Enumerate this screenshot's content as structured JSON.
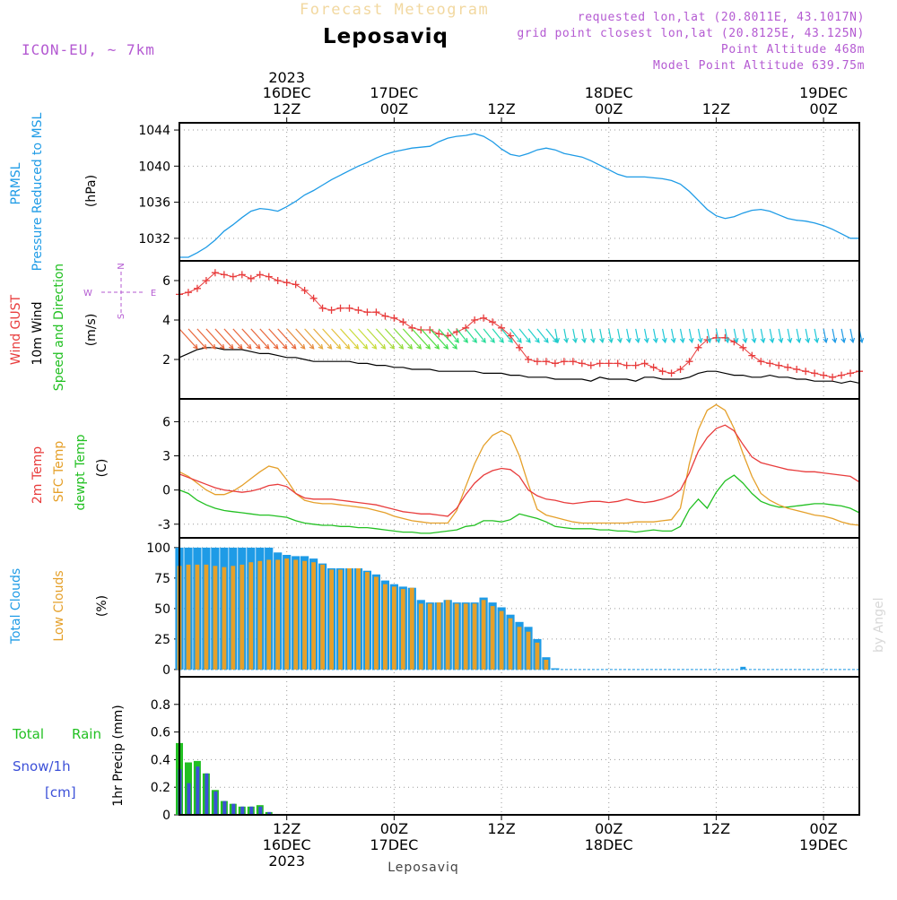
{
  "header": {
    "top_title": "Forecast Meteogram",
    "location": "Leposaviq",
    "model": "ICON-EU, ~ 7km",
    "requested": "requested lon,lat (20.8011E, 43.1017N)",
    "grid_point": "grid point closest lon,lat (20.8125E, 43.125N)",
    "point_alt": "Point Altitude 468m",
    "model_alt": "Model Point Altitude 639.75m",
    "footer_location": "Leposaviq",
    "credit": "by Angel"
  },
  "time_axis": {
    "top_labels": [
      {
        "line1": "2023",
        "line2": "16DEC",
        "line3": "12Z",
        "x": 12
      },
      {
        "line1": "",
        "line2": "17DEC",
        "line3": "00Z",
        "x": 24
      },
      {
        "line1": "",
        "line2": "",
        "line3": "12Z",
        "x": 36
      },
      {
        "line1": "",
        "line2": "18DEC",
        "line3": "00Z",
        "x": 48
      },
      {
        "line1": "",
        "line2": "",
        "line3": "12Z",
        "x": 60
      },
      {
        "line1": "",
        "line2": "19DEC",
        "line3": "00Z",
        "x": 72
      }
    ],
    "bottom_labels": [
      {
        "line1": "12Z",
        "line2": "16DEC",
        "line3": "2023",
        "x": 12
      },
      {
        "line1": "00Z",
        "line2": "17DEC",
        "line3": "",
        "x": 24
      },
      {
        "line1": "12Z",
        "line2": "",
        "line3": "",
        "x": 36
      },
      {
        "line1": "00Z",
        "line2": "18DEC",
        "line3": "",
        "x": 48
      },
      {
        "line1": "12Z",
        "line2": "",
        "line3": "",
        "x": 60
      },
      {
        "line1": "00Z",
        "line2": "19DEC",
        "line3": "",
        "x": 72
      }
    ]
  },
  "panel_labels": {
    "p1": {
      "a": "PRMSL",
      "b": "Pressure Reduced to MSL",
      "unit": "(hPa)"
    },
    "p2": {
      "a": "Wind GUST",
      "b": "10m Wind",
      "c": "Speed and Direction",
      "unit": "(m/s)",
      "compass_n": "N",
      "compass_s": "S",
      "compass_w": "W",
      "compass_e": "E"
    },
    "p3": {
      "a": "2m Temp",
      "b": "SFC Temp",
      "c": "dewpt Temp",
      "unit": "(C)"
    },
    "p4": {
      "a": "Total Clouds",
      "b": "Low Clouds",
      "unit": "(%)"
    },
    "p5": {
      "a": "Total",
      "b": "Rain",
      "c": "Snow/1h",
      "d": "[cm]",
      "unit": "1hr Precip (mm)"
    }
  },
  "colors": {
    "pressure": "#1e9be6",
    "gust": "#e83c3c",
    "wind": "#000000",
    "t2m": "#e83c3c",
    "sfc": "#e5a02a",
    "dewpt": "#22c022",
    "total_clouds": "#1e9be6",
    "low_clouds": "#e5a02a",
    "rain": "#22c022",
    "snow": "#3c50d8",
    "label_purple": "#b45ad2"
  },
  "chart_data": [
    {
      "type": "line",
      "name": "pressure",
      "xlim": [
        0,
        76
      ],
      "ylim": [
        1029.5,
        1044.8
      ],
      "yticks": [
        1032,
        1036,
        1040,
        1044
      ],
      "x": [
        0,
        1,
        2,
        3,
        4,
        5,
        6,
        7,
        8,
        9,
        10,
        11,
        12,
        13,
        14,
        15,
        16,
        17,
        18,
        19,
        20,
        21,
        22,
        23,
        24,
        25,
        26,
        27,
        28,
        29,
        30,
        31,
        32,
        33,
        34,
        35,
        36,
        37,
        38,
        39,
        40,
        41,
        42,
        43,
        44,
        45,
        46,
        47,
        48,
        49,
        50,
        51,
        52,
        53,
        54,
        55,
        56,
        57,
        58,
        59,
        60,
        61,
        62,
        63,
        64,
        65,
        66,
        67,
        68,
        69,
        70,
        71,
        72,
        73,
        74,
        75,
        76
      ],
      "values": [
        1029.9,
        1029.9,
        1030.4,
        1031.0,
        1031.8,
        1032.8,
        1033.5,
        1034.3,
        1035.0,
        1035.3,
        1035.2,
        1035.0,
        1035.5,
        1036.1,
        1036.8,
        1037.3,
        1037.9,
        1038.5,
        1039.0,
        1039.5,
        1040.0,
        1040.4,
        1040.9,
        1041.3,
        1041.6,
        1041.8,
        1042.0,
        1042.1,
        1042.2,
        1042.7,
        1043.1,
        1043.3,
        1043.4,
        1043.6,
        1043.3,
        1042.7,
        1041.9,
        1041.3,
        1041.1,
        1041.4,
        1041.8,
        1042.0,
        1041.8,
        1041.4,
        1041.2,
        1041.0,
        1040.6,
        1040.1,
        1039.6,
        1039.1,
        1038.8,
        1038.8,
        1038.8,
        1038.7,
        1038.6,
        1038.4,
        1038.0,
        1037.2,
        1036.2,
        1035.2,
        1034.5,
        1034.2,
        1034.4,
        1034.8,
        1035.1,
        1035.2,
        1035.0,
        1034.6,
        1034.2,
        1034.0,
        1033.9,
        1033.7,
        1033.4,
        1033.0,
        1032.5,
        1032.0,
        1032.0
      ]
    },
    {
      "type": "line",
      "name": "wind",
      "xlim": [
        0,
        76
      ],
      "ylim": [
        0,
        7
      ],
      "yticks": [
        2,
        4,
        6
      ],
      "gust_x": [
        0,
        1,
        2,
        3,
        4,
        5,
        6,
        7,
        8,
        9,
        10,
        11,
        12,
        13,
        14,
        15,
        16,
        17,
        18,
        19,
        20,
        21,
        22,
        23,
        24,
        25,
        26,
        27,
        28,
        29,
        30,
        31,
        32,
        33,
        34,
        35,
        36,
        37,
        38,
        39,
        40,
        41,
        42,
        43,
        44,
        45,
        46,
        47,
        48,
        49,
        50,
        51,
        52,
        53,
        54,
        55,
        56,
        57,
        58,
        59,
        60,
        61,
        62,
        63,
        64,
        65,
        66,
        67,
        68,
        69,
        70,
        71,
        72,
        73,
        74,
        75,
        76
      ],
      "gust": [
        5.3,
        5.4,
        5.6,
        6.0,
        6.4,
        6.3,
        6.2,
        6.3,
        6.1,
        6.3,
        6.2,
        6.0,
        5.9,
        5.8,
        5.5,
        5.1,
        4.6,
        4.5,
        4.6,
        4.6,
        4.5,
        4.4,
        4.4,
        4.2,
        4.1,
        3.9,
        3.6,
        3.5,
        3.5,
        3.3,
        3.2,
        3.4,
        3.6,
        4.0,
        4.1,
        3.9,
        3.6,
        3.2,
        2.6,
        2.0,
        1.9,
        1.9,
        1.8,
        1.9,
        1.9,
        1.8,
        1.7,
        1.8,
        1.8,
        1.8,
        1.7,
        1.7,
        1.8,
        1.6,
        1.4,
        1.3,
        1.5,
        1.9,
        2.6,
        3.0,
        3.1,
        3.1,
        2.9,
        2.6,
        2.2,
        1.9,
        1.8,
        1.7,
        1.6,
        1.5,
        1.4,
        1.3,
        1.2,
        1.1,
        1.2,
        1.3,
        1.4
      ],
      "speed_x": [
        0,
        1,
        2,
        3,
        4,
        5,
        6,
        7,
        8,
        9,
        10,
        11,
        12,
        13,
        14,
        15,
        16,
        17,
        18,
        19,
        20,
        21,
        22,
        23,
        24,
        25,
        26,
        27,
        28,
        29,
        30,
        31,
        32,
        33,
        34,
        35,
        36,
        37,
        38,
        39,
        40,
        41,
        42,
        43,
        44,
        45,
        46,
        47,
        48,
        49,
        50,
        51,
        52,
        53,
        54,
        55,
        56,
        57,
        58,
        59,
        60,
        61,
        62,
        63,
        64,
        65,
        66,
        67,
        68,
        69,
        70,
        71,
        72,
        73,
        74,
        75,
        76
      ],
      "speed": [
        2.1,
        2.3,
        2.5,
        2.6,
        2.6,
        2.5,
        2.5,
        2.5,
        2.4,
        2.3,
        2.3,
        2.2,
        2.1,
        2.1,
        2.0,
        1.9,
        1.9,
        1.9,
        1.9,
        1.9,
        1.8,
        1.8,
        1.7,
        1.7,
        1.6,
        1.6,
        1.5,
        1.5,
        1.5,
        1.4,
        1.4,
        1.4,
        1.4,
        1.4,
        1.3,
        1.3,
        1.3,
        1.2,
        1.2,
        1.1,
        1.1,
        1.1,
        1.0,
        1.0,
        1.0,
        1.0,
        0.9,
        1.1,
        1.0,
        1.0,
        1.0,
        0.9,
        1.1,
        1.1,
        1.0,
        1.0,
        1.0,
        1.1,
        1.3,
        1.4,
        1.4,
        1.3,
        1.2,
        1.2,
        1.1,
        1.1,
        1.2,
        1.1,
        1.1,
        1.0,
        1.0,
        0.9,
        0.9,
        0.9,
        0.8,
        0.9,
        0.8
      ],
      "arrow_colors": [
        "#e8663a",
        "#e8663a",
        "#e8663a",
        "#e8663a",
        "#e8663a",
        "#e8663a",
        "#e8663a",
        "#e8663a",
        "#e8663a",
        "#e8663a",
        "#e8663a",
        "#e8663a",
        "#e58a3c",
        "#e58a3c",
        "#e5a83c",
        "#e5a83c",
        "#e5c03c",
        "#e5c03c",
        "#d8d23c",
        "#c8dc3c",
        "#c8dc3c",
        "#b8dc3c",
        "#a8dc3c",
        "#96dc3c",
        "#80dc3c",
        "#6ede3c",
        "#5cde3c",
        "#4cde40",
        "#40de50",
        "#38de60",
        "#32de70",
        "#2ede80",
        "#2adc92",
        "#2adc9a",
        "#2adca6",
        "#26dab2",
        "#24d8be",
        "#22d4c4",
        "#22d2c8",
        "#22d0cc",
        "#22cccc",
        "#22cccc",
        "#22cccc",
        "#22cccc",
        "#22cccc",
        "#22cccc",
        "#22cccc",
        "#22cccc",
        "#22cccc",
        "#22cccc",
        "#1ec8d8",
        "#1ec8d8",
        "#1ec8d8",
        "#1ec8d8",
        "#1ec8d8",
        "#1ec8d8",
        "#1ec8d8",
        "#1ec8d8",
        "#1ec8d8",
        "#1ec8d8",
        "#1ec8d8",
        "#1ec8d8",
        "#1ec8d8",
        "#1ec8d8",
        "#1ec8d8",
        "#1ec8d8",
        "#1ec8d8",
        "#1ec8d8",
        "#1ec8d8",
        "#1ec8d8",
        "#1ec8d8",
        "#1ec8d8",
        "#1e9be6",
        "#1e9be6",
        "#1e9be6",
        "#1e9be6",
        "#1e9be6"
      ]
    },
    {
      "type": "line",
      "name": "temperature",
      "xlim": [
        0,
        76
      ],
      "ylim": [
        -4.2,
        8.0
      ],
      "yticks": [
        -3,
        0,
        3,
        6
      ],
      "x": [
        0,
        1,
        2,
        3,
        4,
        5,
        6,
        7,
        8,
        9,
        10,
        11,
        12,
        13,
        14,
        15,
        16,
        17,
        18,
        19,
        20,
        21,
        22,
        23,
        24,
        25,
        26,
        27,
        28,
        29,
        30,
        31,
        32,
        33,
        34,
        35,
        36,
        37,
        38,
        39,
        40,
        41,
        42,
        43,
        44,
        45,
        46,
        47,
        48,
        49,
        50,
        51,
        52,
        53,
        54,
        55,
        56,
        57,
        58,
        59,
        60,
        61,
        62,
        63,
        64,
        65,
        66,
        67,
        68,
        69,
        70,
        71,
        72,
        73,
        74,
        75,
        76
      ],
      "t2m": [
        1.4,
        1.1,
        0.8,
        0.5,
        0.2,
        0.0,
        -0.1,
        -0.2,
        -0.1,
        0.1,
        0.4,
        0.5,
        0.3,
        -0.3,
        -0.7,
        -0.8,
        -0.8,
        -0.8,
        -0.9,
        -1.0,
        -1.1,
        -1.2,
        -1.3,
        -1.5,
        -1.7,
        -1.9,
        -2.0,
        -2.1,
        -2.1,
        -2.2,
        -2.3,
        -1.6,
        -0.4,
        0.6,
        1.3,
        1.7,
        1.9,
        1.8,
        1.2,
        0.0,
        -0.5,
        -0.8,
        -0.9,
        -1.1,
        -1.2,
        -1.1,
        -1.0,
        -1.0,
        -1.1,
        -1.0,
        -0.8,
        -1.0,
        -1.1,
        -1.0,
        -0.8,
        -0.5,
        0.0,
        1.5,
        3.4,
        4.6,
        5.4,
        5.7,
        5.2,
        4.0,
        2.9,
        2.4,
        2.2,
        2.0,
        1.8,
        1.7,
        1.6,
        1.6,
        1.5,
        1.4,
        1.3,
        1.2,
        0.7
      ],
      "sfc": [
        1.6,
        1.2,
        0.6,
        0.0,
        -0.4,
        -0.4,
        -0.1,
        0.4,
        1.0,
        1.6,
        2.1,
        1.9,
        0.9,
        -0.3,
        -0.9,
        -1.1,
        -1.2,
        -1.2,
        -1.3,
        -1.4,
        -1.5,
        -1.6,
        -1.8,
        -2.0,
        -2.3,
        -2.5,
        -2.7,
        -2.8,
        -2.9,
        -2.9,
        -2.9,
        -1.8,
        0.3,
        2.3,
        3.9,
        4.8,
        5.2,
        4.8,
        3.0,
        0.5,
        -1.7,
        -2.2,
        -2.4,
        -2.6,
        -2.8,
        -2.9,
        -2.9,
        -2.9,
        -2.9,
        -2.9,
        -2.9,
        -2.8,
        -2.8,
        -2.8,
        -2.7,
        -2.6,
        -1.6,
        2.3,
        5.3,
        7.0,
        7.5,
        7.0,
        5.4,
        3.2,
        1.2,
        -0.3,
        -0.9,
        -1.3,
        -1.6,
        -1.8,
        -2.0,
        -2.2,
        -2.3,
        -2.5,
        -2.8,
        -3.0,
        -3.1
      ],
      "dewpt": [
        0.0,
        -0.3,
        -0.9,
        -1.3,
        -1.6,
        -1.8,
        -1.9,
        -2.0,
        -2.1,
        -2.2,
        -2.2,
        -2.3,
        -2.4,
        -2.7,
        -2.9,
        -3.0,
        -3.1,
        -3.1,
        -3.2,
        -3.2,
        -3.3,
        -3.3,
        -3.4,
        -3.5,
        -3.6,
        -3.7,
        -3.7,
        -3.8,
        -3.8,
        -3.7,
        -3.6,
        -3.5,
        -3.2,
        -3.1,
        -2.7,
        -2.7,
        -2.8,
        -2.6,
        -2.1,
        -2.3,
        -2.5,
        -2.8,
        -3.2,
        -3.3,
        -3.4,
        -3.4,
        -3.4,
        -3.5,
        -3.5,
        -3.6,
        -3.6,
        -3.7,
        -3.6,
        -3.5,
        -3.6,
        -3.6,
        -3.2,
        -1.7,
        -0.8,
        -1.6,
        -0.2,
        0.8,
        1.3,
        0.6,
        -0.3,
        -1.0,
        -1.3,
        -1.5,
        -1.5,
        -1.4,
        -1.3,
        -1.2,
        -1.2,
        -1.3,
        -1.4,
        -1.6,
        -2.0
      ]
    },
    {
      "type": "bar",
      "name": "clouds",
      "xlim": [
        0,
        76
      ],
      "ylim": [
        -6,
        108
      ],
      "yticks": [
        0,
        25,
        50,
        75,
        100
      ],
      "x": [
        0,
        1,
        2,
        3,
        4,
        5,
        6,
        7,
        8,
        9,
        10,
        11,
        12,
        13,
        14,
        15,
        16,
        17,
        18,
        19,
        20,
        21,
        22,
        23,
        24,
        25,
        26,
        27,
        28,
        29,
        30,
        31,
        32,
        33,
        34,
        35,
        36,
        37,
        38,
        39,
        40,
        41,
        42,
        43,
        44,
        45,
        46,
        47,
        48,
        49,
        50,
        51,
        52,
        53,
        54,
        55,
        56,
        57,
        58,
        59,
        60,
        61,
        62,
        63,
        64,
        65,
        66,
        67,
        68,
        69,
        70,
        71,
        72,
        73,
        74,
        75
      ],
      "total": [
        100,
        100,
        100,
        100,
        100,
        100,
        100,
        100,
        100,
        100,
        100,
        96,
        94,
        93,
        93,
        91,
        87,
        83,
        83,
        83,
        83,
        81,
        78,
        73,
        70,
        68,
        67,
        57,
        55,
        55,
        57,
        55,
        55,
        55,
        59,
        55,
        51,
        45,
        39,
        35,
        25,
        10,
        1,
        0,
        0,
        0,
        0,
        0,
        0,
        0,
        0,
        0,
        0,
        0,
        0,
        0,
        0,
        0,
        0,
        0,
        0,
        0,
        0,
        0,
        0,
        0,
        0,
        0,
        0,
        0,
        0,
        0,
        0,
        0,
        0,
        0
      ],
      "low": [
        85,
        86,
        86,
        86,
        85,
        84,
        85,
        86,
        88,
        89,
        90,
        90,
        91,
        90,
        89,
        88,
        86,
        82,
        82,
        83,
        83,
        80,
        76,
        70,
        68,
        66,
        67,
        54,
        54,
        55,
        57,
        54,
        54,
        54,
        57,
        52,
        48,
        42,
        35,
        31,
        22,
        8,
        0,
        0,
        0,
        0,
        0,
        0,
        0,
        0,
        0,
        0,
        0,
        0,
        0,
        0,
        0,
        0,
        0,
        0,
        0,
        0,
        0,
        0,
        0,
        0,
        0,
        0,
        0,
        0,
        0,
        0,
        0,
        0,
        0,
        0
      ]
    },
    {
      "type": "bar",
      "name": "precip",
      "xlim": [
        0,
        76
      ],
      "ylim": [
        0,
        1.0
      ],
      "yticks": [
        0,
        0.2,
        0.4,
        0.6,
        0.8
      ],
      "x": [
        0,
        1,
        2,
        3,
        4,
        5,
        6,
        7,
        8,
        9,
        10
      ],
      "rain": [
        0.52,
        0.38,
        0.39,
        0.3,
        0.18,
        0.1,
        0.08,
        0.06,
        0.06,
        0.07,
        0.02
      ],
      "snow": [
        0.33,
        0.23,
        0.35,
        0.3,
        0.17,
        0.1,
        0.08,
        0.06,
        0.06,
        0.06,
        0.02
      ]
    }
  ]
}
